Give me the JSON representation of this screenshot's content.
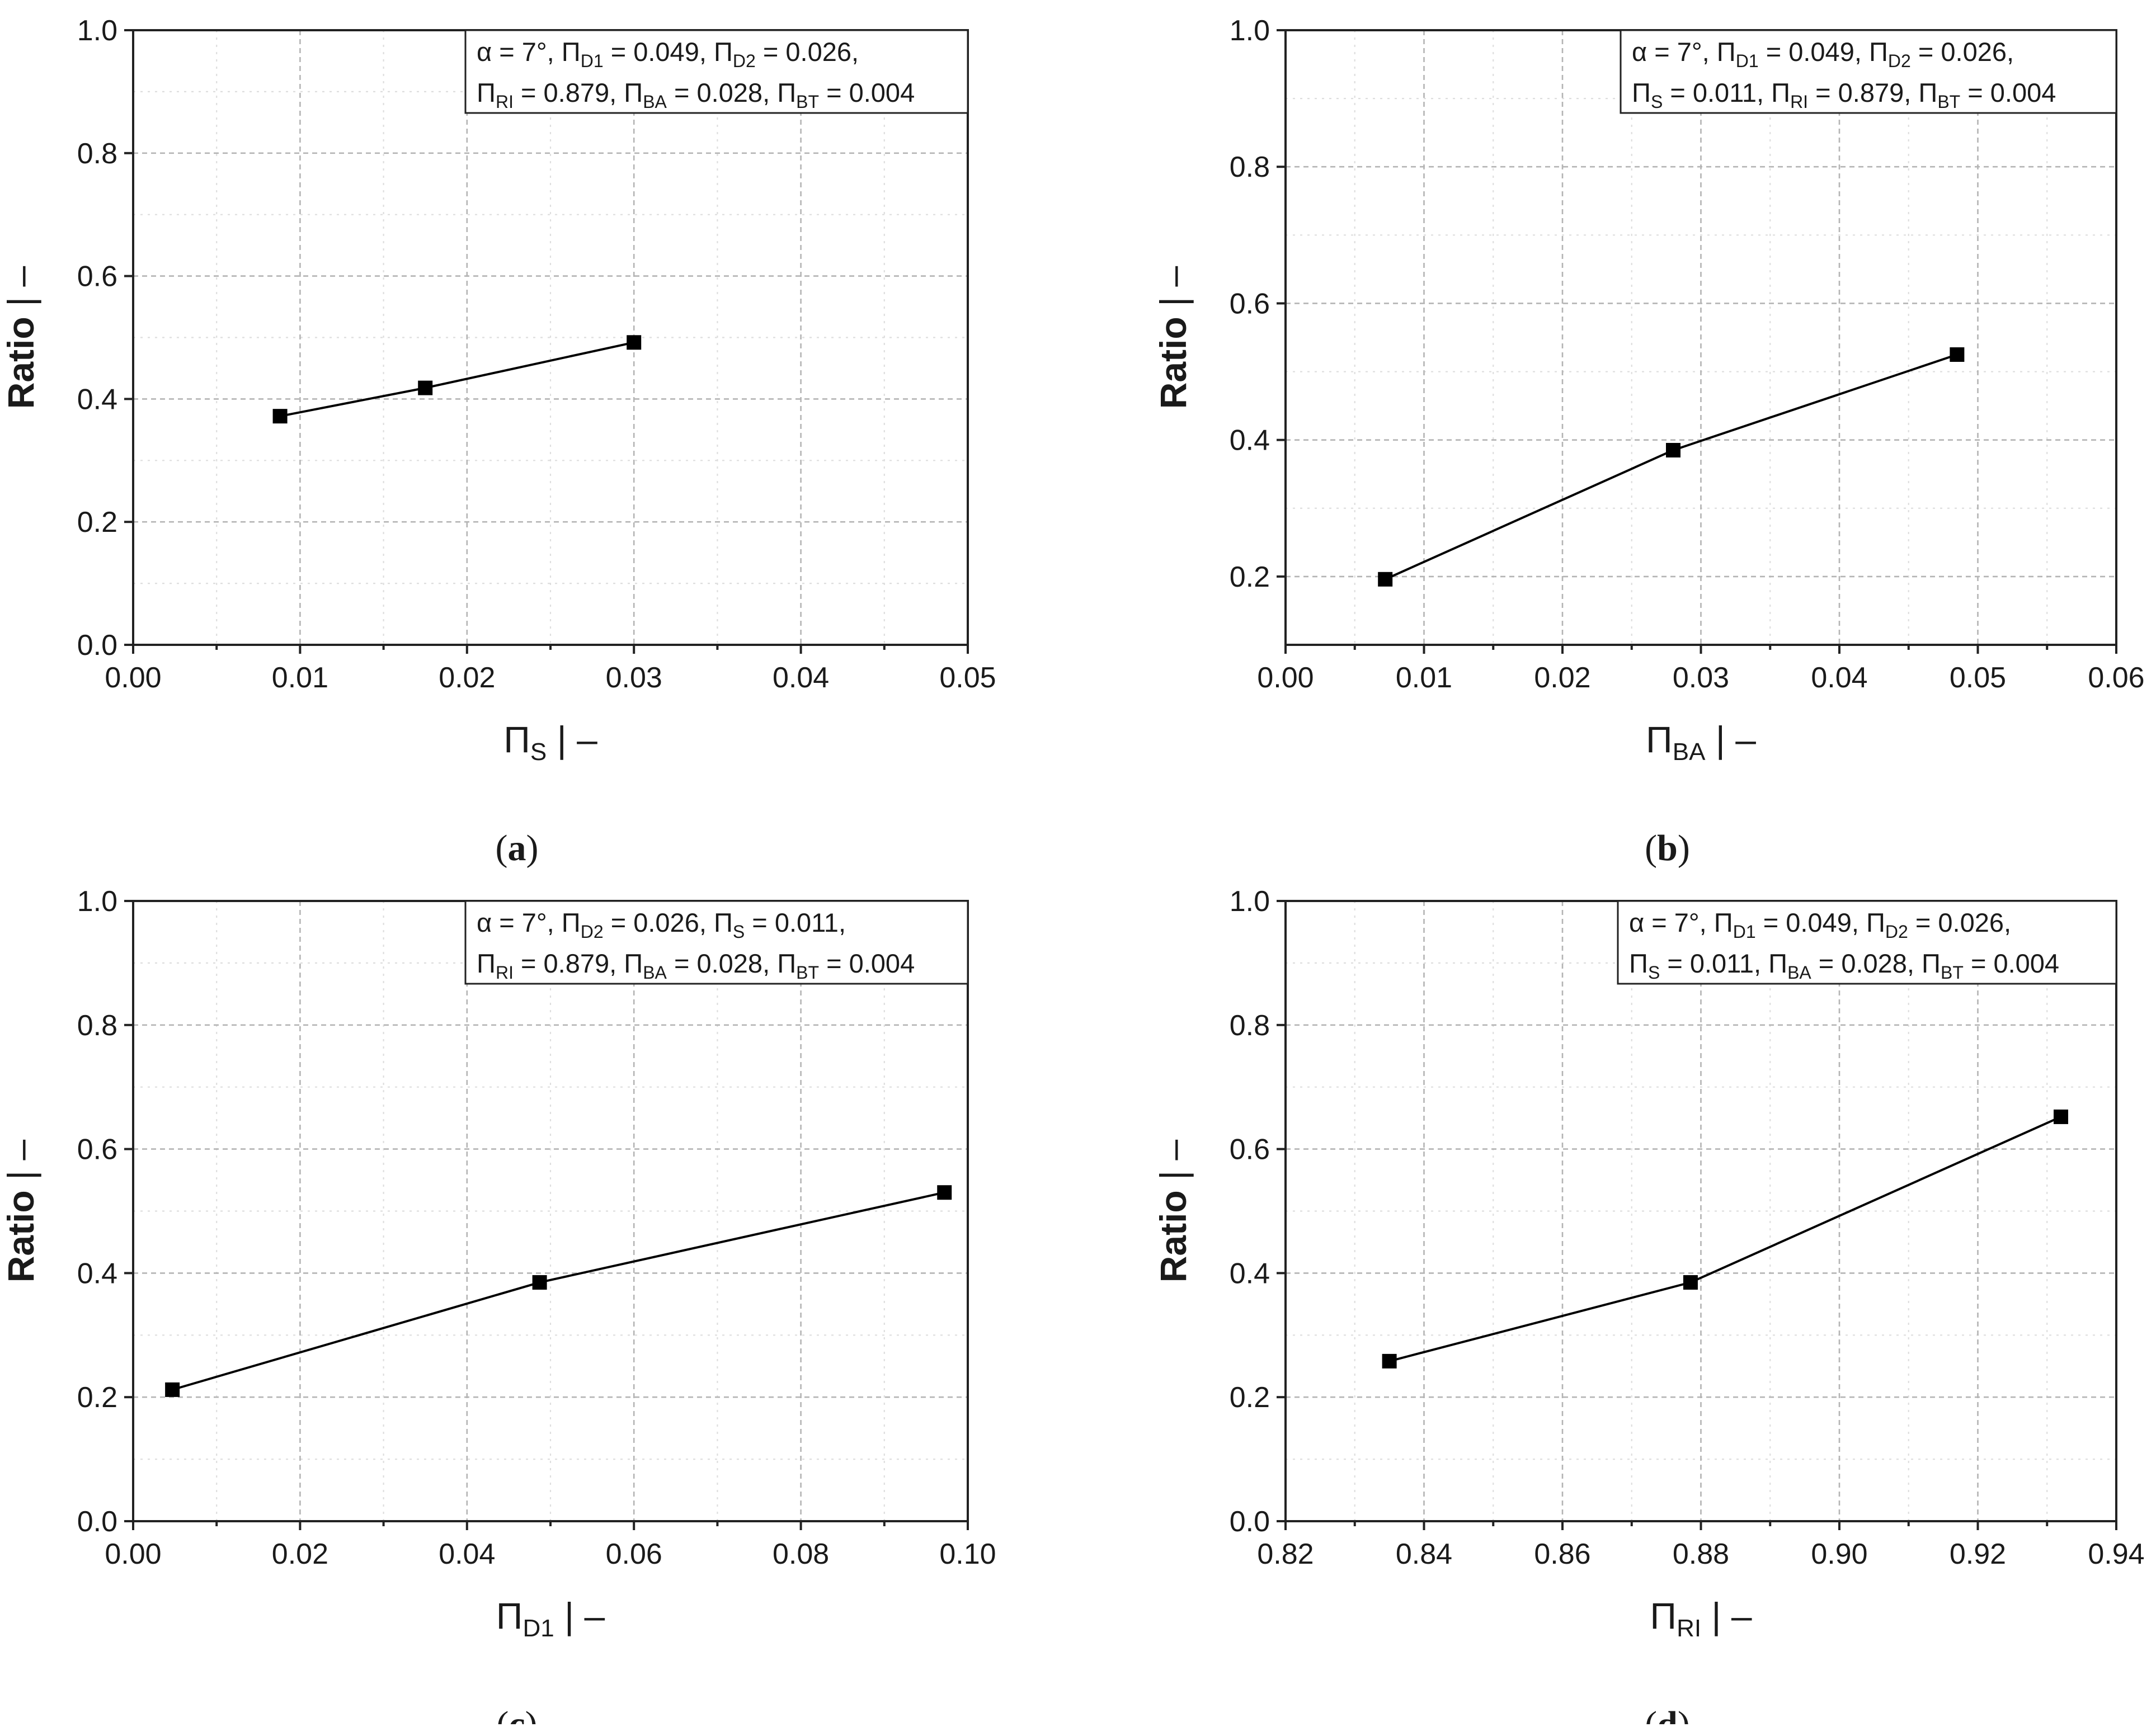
{
  "chart_data": [
    {
      "id": "a",
      "type": "line",
      "panel_label": "a",
      "xlabel": {
        "symbol": "Π",
        "sub": "S",
        "suffix": " | –"
      },
      "ylabel": "Ratio | –",
      "xlim": [
        0,
        0.05
      ],
      "ylim": [
        0,
        1.0
      ],
      "xticks": [
        0.0,
        0.01,
        0.02,
        0.03,
        0.04,
        0.05
      ],
      "xtick_labels": [
        "0.00",
        "0.01",
        "0.02",
        "0.03",
        "0.04",
        "0.05"
      ],
      "yticks": [
        0.0,
        0.2,
        0.4,
        0.6,
        0.8,
        1.0
      ],
      "ytick_labels": [
        "0.0",
        "0.2",
        "0.4",
        "0.6",
        "0.8",
        "1.0"
      ],
      "x": [
        0.0088,
        0.0175,
        0.03
      ],
      "y": [
        0.372,
        0.418,
        0.492
      ],
      "legend": [
        [
          {
            "t": "α = 7°, "
          },
          {
            "t": "Π"
          },
          {
            "sub": "D1"
          },
          {
            "t": " = 0.049, "
          },
          {
            "t": "Π"
          },
          {
            "sub": "D2"
          },
          {
            "t": " = 0.026,"
          }
        ],
        [
          {
            "t": "Π"
          },
          {
            "sub": "RI"
          },
          {
            "t": " = 0.879, "
          },
          {
            "t": "Π"
          },
          {
            "sub": "BA"
          },
          {
            "t": " = 0.028, "
          },
          {
            "t": "Π"
          },
          {
            "sub": "BT"
          },
          {
            "t": " = 0.004"
          }
        ]
      ],
      "grid": true
    },
    {
      "id": "b",
      "type": "line",
      "panel_label": "b",
      "xlabel": {
        "symbol": "Π",
        "sub": "BA",
        "suffix": " | –"
      },
      "ylabel": "Ratio | –",
      "xlim": [
        0,
        0.06
      ],
      "ylim": [
        0.1,
        1.0
      ],
      "xticks": [
        0.0,
        0.01,
        0.02,
        0.03,
        0.04,
        0.05,
        0.06
      ],
      "xtick_labels": [
        "0.00",
        "0.01",
        "0.02",
        "0.03",
        "0.04",
        "0.05",
        "0.06"
      ],
      "yticks": [
        0.2,
        0.4,
        0.6,
        0.8,
        1.0
      ],
      "ytick_labels": [
        "0.2",
        "0.4",
        "0.6",
        "0.8",
        "1.0"
      ],
      "x": [
        0.0072,
        0.028,
        0.0485
      ],
      "y": [
        0.196,
        0.385,
        0.525
      ],
      "legend": [
        [
          {
            "t": "α = 7°, "
          },
          {
            "t": "Π"
          },
          {
            "sub": "D1"
          },
          {
            "t": " = 0.049, "
          },
          {
            "t": "Π"
          },
          {
            "sub": "D2"
          },
          {
            "t": " = 0.026,"
          }
        ],
        [
          {
            "t": "Π"
          },
          {
            "sub": "S"
          },
          {
            "t": " = 0.011, "
          },
          {
            "t": "Π"
          },
          {
            "sub": "RI"
          },
          {
            "t": " = 0.879, "
          },
          {
            "t": "Π"
          },
          {
            "sub": "BT"
          },
          {
            "t": " = 0.004"
          }
        ]
      ],
      "grid": true
    },
    {
      "id": "c",
      "type": "line",
      "panel_label": "c",
      "xlabel": {
        "symbol": "Π",
        "sub": "D1",
        "suffix": " | –"
      },
      "ylabel": "Ratio | –",
      "xlim": [
        0,
        0.1
      ],
      "ylim": [
        0,
        1.0
      ],
      "xticks": [
        0.0,
        0.02,
        0.04,
        0.06,
        0.08,
        0.1
      ],
      "xtick_labels": [
        "0.00",
        "0.02",
        "0.04",
        "0.06",
        "0.08",
        "0.10"
      ],
      "yticks": [
        0.0,
        0.2,
        0.4,
        0.6,
        0.8,
        1.0
      ],
      "ytick_labels": [
        "0.0",
        "0.2",
        "0.4",
        "0.6",
        "0.8",
        "1.0"
      ],
      "x": [
        0.0047,
        0.0487,
        0.0972
      ],
      "y": [
        0.212,
        0.385,
        0.53
      ],
      "legend": [
        [
          {
            "t": "α = 7°, "
          },
          {
            "t": "Π"
          },
          {
            "sub": "D2"
          },
          {
            "t": " = 0.026, "
          },
          {
            "t": "Π"
          },
          {
            "sub": "S"
          },
          {
            "t": " = 0.011,"
          }
        ],
        [
          {
            "t": "Π"
          },
          {
            "sub": "RI"
          },
          {
            "t": " = 0.879, "
          },
          {
            "t": "Π"
          },
          {
            "sub": "BA"
          },
          {
            "t": " = 0.028, "
          },
          {
            "t": "Π"
          },
          {
            "sub": "BT"
          },
          {
            "t": " = 0.004"
          }
        ]
      ],
      "grid": true
    },
    {
      "id": "d",
      "type": "line",
      "panel_label": "d",
      "xlabel": {
        "symbol": "Π",
        "sub": "RI",
        "suffix": " | –"
      },
      "ylabel": "Ratio | –",
      "xlim": [
        0.82,
        0.94
      ],
      "ylim": [
        0,
        1.0
      ],
      "xticks": [
        0.82,
        0.84,
        0.86,
        0.88,
        0.9,
        0.92,
        0.94
      ],
      "xtick_labels": [
        "0.82",
        "0.84",
        "0.86",
        "0.88",
        "0.90",
        "0.92",
        "0.94"
      ],
      "yticks": [
        0.0,
        0.2,
        0.4,
        0.6,
        0.8,
        1.0
      ],
      "ytick_labels": [
        "0.0",
        "0.2",
        "0.4",
        "0.6",
        "0.8",
        "1.0"
      ],
      "x": [
        0.835,
        0.8785,
        0.932
      ],
      "y": [
        0.258,
        0.385,
        0.652
      ],
      "legend": [
        [
          {
            "t": "α = 7°, "
          },
          {
            "t": "Π"
          },
          {
            "sub": "D1"
          },
          {
            "t": " = 0.049, "
          },
          {
            "t": "Π"
          },
          {
            "sub": "D2"
          },
          {
            "t": " = 0.026,"
          }
        ],
        [
          {
            "t": "Π"
          },
          {
            "sub": "S"
          },
          {
            "t": " = 0.011, "
          },
          {
            "t": "Π"
          },
          {
            "sub": "BA"
          },
          {
            "t": " = 0.028, "
          },
          {
            "t": "Π"
          },
          {
            "sub": "BT"
          },
          {
            "t": " = 0.004"
          }
        ]
      ],
      "grid": true
    }
  ]
}
